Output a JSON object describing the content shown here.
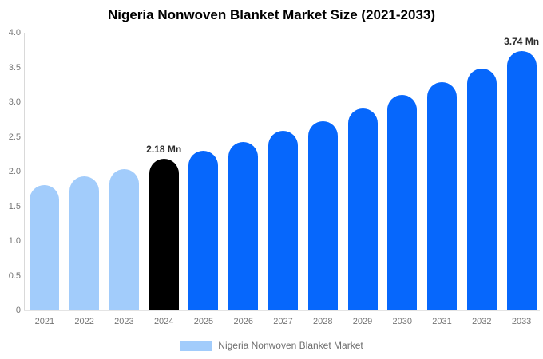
{
  "header": {
    "title": "Nigeria Nonwoven Blanket Market Size (2021-2033)"
  },
  "legend": {
    "label": "Nigeria Nonwoven Blanket Market",
    "swatch_color": "#a2ccfb"
  },
  "colors": {
    "historical_bar": "#a2ccfb",
    "base_year_bar": "#000000",
    "forecast_bar": "#0667fc",
    "axis_line": "#d9d9d9",
    "tick_text": "#757575",
    "value_label_text": "#2b2b2b",
    "title_text": "#000000"
  },
  "y_axis": {
    "tick_labels": [
      "4.0",
      "3.5",
      "3.0",
      "2.5",
      "2.0",
      "1.5",
      "1.0",
      "0.5",
      "0"
    ],
    "tick_values": [
      4.0,
      3.5,
      3.0,
      2.5,
      2.0,
      1.5,
      1.0,
      0.5,
      0
    ]
  },
  "chart_data": {
    "type": "bar",
    "title": "Nigeria Nonwoven Blanket Market Size (2021-2033)",
    "categories": [
      "2021",
      "2022",
      "2023",
      "2024",
      "2025",
      "2026",
      "2027",
      "2028",
      "2029",
      "2030",
      "2031",
      "2032",
      "2033"
    ],
    "series": [
      {
        "name": "Nigeria Nonwoven Blanket Market",
        "values": [
          1.81,
          1.93,
          2.04,
          2.18,
          2.3,
          2.43,
          2.59,
          2.73,
          2.91,
          3.1,
          3.29,
          3.48,
          3.74
        ]
      }
    ],
    "unit": "Mn",
    "ylim": [
      0,
      4.0
    ],
    "grid": false,
    "legend_position": "bottom",
    "bar_color_by_category": [
      "#a2ccfb",
      "#a2ccfb",
      "#a2ccfb",
      "#000000",
      "#0667fc",
      "#0667fc",
      "#0667fc",
      "#0667fc",
      "#0667fc",
      "#0667fc",
      "#0667fc",
      "#0667fc",
      "#0667fc"
    ],
    "data_labels": [
      {
        "category": "2024",
        "text": "2.18 Mn"
      },
      {
        "category": "2033",
        "text": "3.74 Mn"
      }
    ]
  }
}
